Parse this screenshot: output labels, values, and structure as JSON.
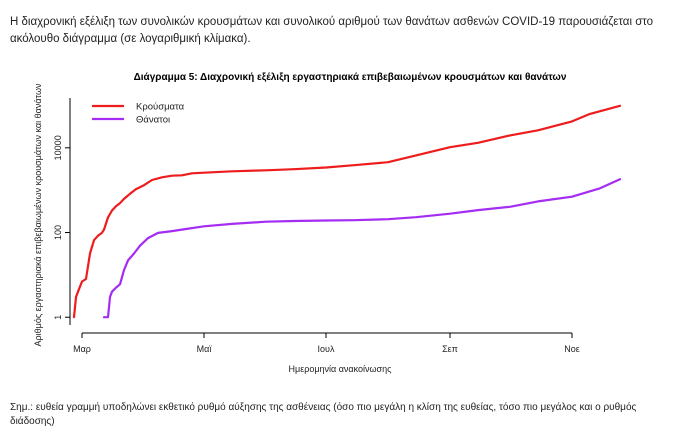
{
  "intro": "Η διαχρονική εξέλιξη των συνολικών κρουσμάτων και συνολικού αριθμού των θανάτων ασθενών COVID-19 παρουσιάζεται στο ακόλουθο διάγραμμα (σε λογαριθμική κλίμακα).",
  "note": "Σημ.: ευθεία γραμμή υποδηλώνει εκθετικό ρυθμό αύξησης της ασθένειας (όσο πιο μεγάλη η κλίση της ευθείας, τόσο πιο μεγάλος και ο ρυθμός διάδοσης)",
  "chart_data": {
    "type": "line",
    "title": "Διάγραμμα 5: Διαχρονική εξέλιξη εργαστηριακά επιβεβαιωμένων κρουσμάτων και θανάτων",
    "xlabel": "Ημερομηνία ανακοίνωσης",
    "ylabel": "Αριθμός εργαστηριακά επιβεβαιωμένων κρουσμάτων και θανάτων",
    "y_scale": "log",
    "ylim": [
      0.5,
      150000
    ],
    "xlim": [
      "2020-02-24",
      "2020-11-30"
    ],
    "x_ticks": [
      {
        "date": "2020-03-01",
        "label": "Μαρ"
      },
      {
        "date": "2020-05-01",
        "label": "Μαϊ"
      },
      {
        "date": "2020-07-01",
        "label": "Ιουλ"
      },
      {
        "date": "2020-09-01",
        "label": "Σεπ"
      },
      {
        "date": "2020-11-01",
        "label": "Νοε"
      }
    ],
    "y_ticks": [
      {
        "value": 1,
        "label": "1"
      },
      {
        "value": 100,
        "label": "100"
      },
      {
        "value": 10000,
        "label": "10000"
      }
    ],
    "legend_position": "top-left",
    "series": [
      {
        "name": "Κρούσματα",
        "color": "#ee1c1c",
        "points": [
          [
            "2020-02-26",
            1
          ],
          [
            "2020-02-27",
            3
          ],
          [
            "2020-02-28",
            4
          ],
          [
            "2020-03-01",
            7
          ],
          [
            "2020-03-03",
            8
          ],
          [
            "2020-03-05",
            32
          ],
          [
            "2020-03-07",
            66
          ],
          [
            "2020-03-09",
            84
          ],
          [
            "2020-03-11",
            99
          ],
          [
            "2020-03-12",
            117
          ],
          [
            "2020-03-14",
            228
          ],
          [
            "2020-03-16",
            331
          ],
          [
            "2020-03-18",
            418
          ],
          [
            "2020-03-20",
            495
          ],
          [
            "2020-03-22",
            624
          ],
          [
            "2020-03-25",
            821
          ],
          [
            "2020-03-28",
            1061
          ],
          [
            "2020-04-01",
            1314
          ],
          [
            "2020-04-05",
            1735
          ],
          [
            "2020-04-10",
            2011
          ],
          [
            "2020-04-15",
            2192
          ],
          [
            "2020-04-20",
            2245
          ],
          [
            "2020-04-25",
            2506
          ],
          [
            "2020-05-01",
            2591
          ],
          [
            "2020-05-15",
            2788
          ],
          [
            "2020-06-01",
            2952
          ],
          [
            "2020-06-15",
            3121
          ],
          [
            "2020-07-01",
            3432
          ],
          [
            "2020-07-15",
            3879
          ],
          [
            "2020-08-01",
            4587
          ],
          [
            "2020-08-15",
            6632
          ],
          [
            "2020-09-01",
            10317
          ],
          [
            "2020-09-15",
            13112
          ],
          [
            "2020-10-01",
            19613
          ],
          [
            "2020-10-15",
            25902
          ],
          [
            "2020-11-01",
            42080
          ],
          [
            "2020-11-10",
            63321
          ],
          [
            "2020-11-25",
            98000
          ]
        ]
      },
      {
        "name": "Θάνατοι",
        "color": "#a52cf2",
        "points": [
          [
            "2020-03-12",
            1
          ],
          [
            "2020-03-14",
            1
          ],
          [
            "2020-03-15",
            3
          ],
          [
            "2020-03-16",
            4
          ],
          [
            "2020-03-18",
            5
          ],
          [
            "2020-03-20",
            6
          ],
          [
            "2020-03-22",
            13
          ],
          [
            "2020-03-24",
            22
          ],
          [
            "2020-03-27",
            32
          ],
          [
            "2020-03-30",
            49
          ],
          [
            "2020-04-03",
            74
          ],
          [
            "2020-04-08",
            98
          ],
          [
            "2020-04-15",
            108
          ],
          [
            "2020-04-22",
            121
          ],
          [
            "2020-05-01",
            140
          ],
          [
            "2020-05-15",
            160
          ],
          [
            "2020-06-01",
            180
          ],
          [
            "2020-06-15",
            187
          ],
          [
            "2020-07-01",
            192
          ],
          [
            "2020-07-15",
            196
          ],
          [
            "2020-08-01",
            206
          ],
          [
            "2020-08-15",
            230
          ],
          [
            "2020-09-01",
            279
          ],
          [
            "2020-09-15",
            338
          ],
          [
            "2020-10-01",
            406
          ],
          [
            "2020-10-15",
            543
          ],
          [
            "2020-11-01",
            702
          ],
          [
            "2020-11-15",
            1106
          ],
          [
            "2020-11-25",
            1815
          ]
        ]
      }
    ]
  }
}
